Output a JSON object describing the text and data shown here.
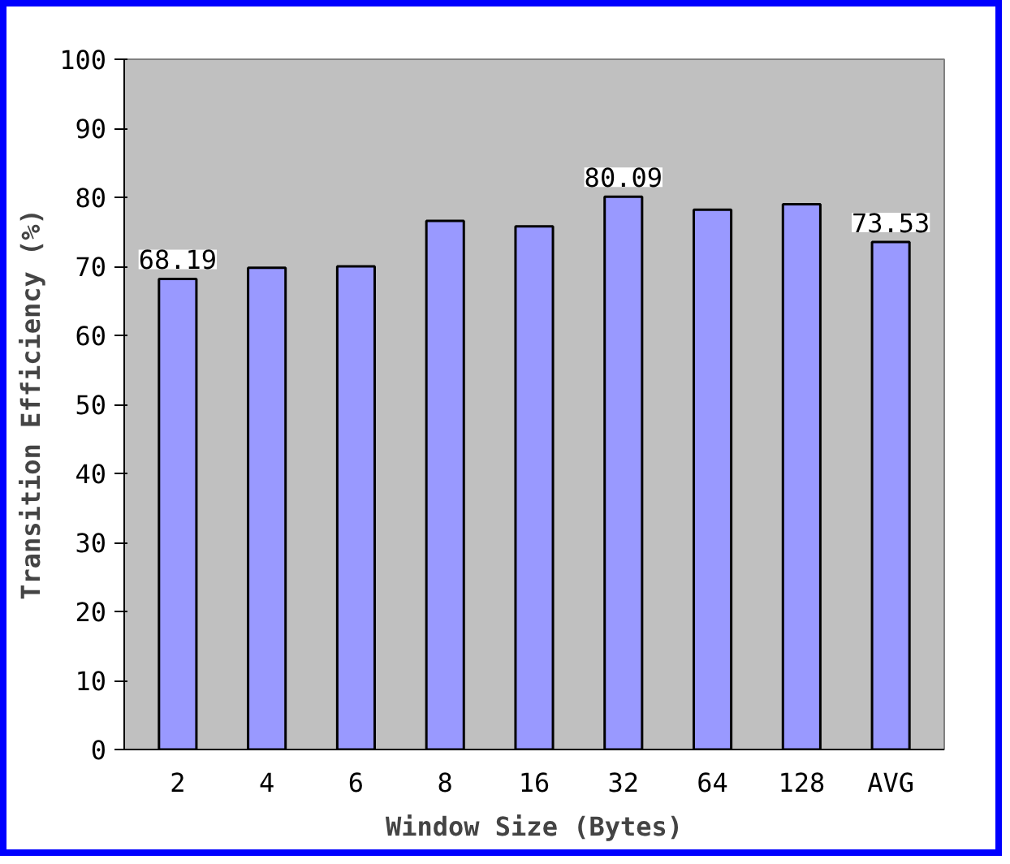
{
  "chart_data": {
    "type": "bar",
    "xlabel": "Window Size (Bytes)",
    "ylabel": "Transition Efficiency (%)",
    "categories": [
      "2",
      "4",
      "6",
      "8",
      "16",
      "32",
      "64",
      "128",
      "AVG"
    ],
    "values": [
      68.19,
      69.8,
      70.0,
      76.6,
      75.8,
      80.09,
      78.2,
      79.0,
      73.53
    ],
    "value_labels": [
      "68.19",
      null,
      null,
      null,
      null,
      "80.09",
      null,
      null,
      "73.53"
    ],
    "color": "#9999ff",
    "ylim": [
      0,
      100
    ],
    "yticks": [
      0,
      10,
      20,
      30,
      40,
      50,
      60,
      70,
      80,
      90,
      100
    ],
    "grid": false
  }
}
